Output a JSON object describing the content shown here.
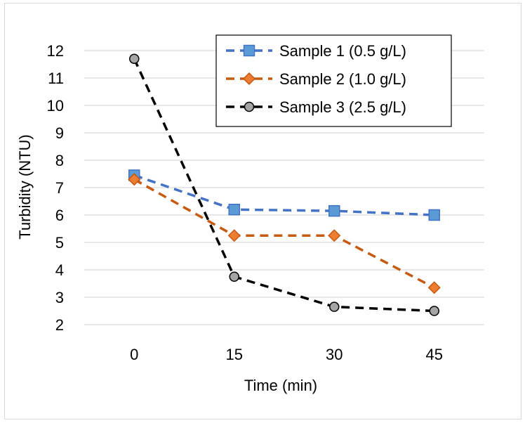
{
  "chart_data": {
    "type": "line",
    "title": "",
    "xlabel": "Time (min)",
    "ylabel": "Turbidity (NTU)",
    "categories": [
      "0",
      "15",
      "30",
      "45"
    ],
    "ylim": [
      2,
      12
    ],
    "yticks": [
      "2",
      "3",
      "4",
      "5",
      "6",
      "7",
      "8",
      "9",
      "10",
      "11",
      "12"
    ],
    "grid": true,
    "legend_position": "top-right",
    "series": [
      {
        "name": "Sample 1 (0.5 g/L)",
        "values": [
          7.45,
          6.2,
          6.15,
          6.0
        ],
        "color": "#4472c4",
        "marker": "square",
        "fill": "#5b9bd5"
      },
      {
        "name": "Sample 2 (1.0 g/L)",
        "values": [
          7.3,
          5.25,
          5.25,
          3.35
        ],
        "color": "#c55a11",
        "marker": "diamond",
        "fill": "#ed7d31"
      },
      {
        "name": "Sample 3 (2.5 g/L)",
        "values": [
          11.7,
          3.75,
          2.65,
          2.5
        ],
        "color": "#000000",
        "marker": "circle",
        "fill": "#a5a5a5"
      }
    ]
  }
}
